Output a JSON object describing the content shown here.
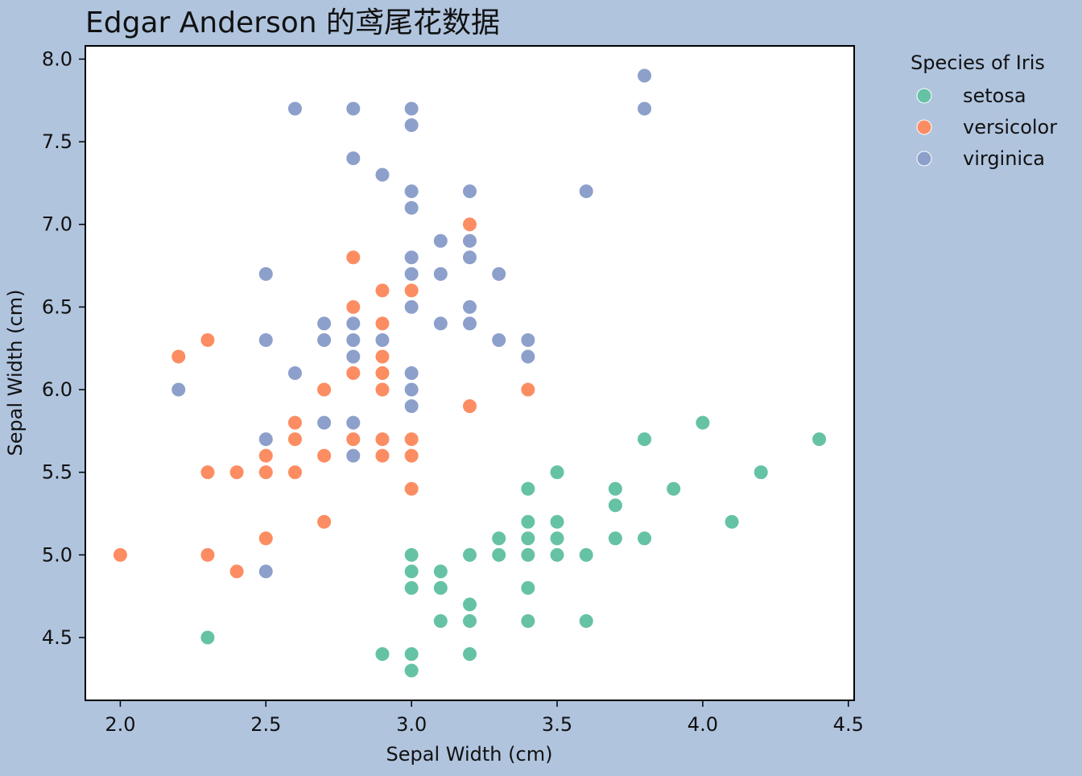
{
  "chart_data": {
    "type": "scatter",
    "title": "Edgar Anderson 的鸢尾花数据",
    "xlabel": "Sepal Width (cm)",
    "ylabel": "Sepal Width (cm)",
    "xlim": [
      1.88,
      4.52
    ],
    "ylim": [
      4.12,
      8.08
    ],
    "xticks": [
      "2.0",
      "2.5",
      "3.0",
      "3.5",
      "4.0",
      "4.5"
    ],
    "yticks": [
      "4.5",
      "5.0",
      "5.5",
      "6.0",
      "6.5",
      "7.0",
      "7.5",
      "8.0"
    ],
    "grid": false,
    "legend_title": "Species of Iris",
    "legend_position": "outside-right-top",
    "series": [
      {
        "name": "setosa",
        "color": "#66c2a5",
        "points": [
          [
            2.3,
            4.5
          ],
          [
            2.9,
            4.4
          ],
          [
            3.0,
            4.4
          ],
          [
            3.0,
            4.3
          ],
          [
            3.2,
            4.4
          ],
          [
            3.0,
            5.0
          ],
          [
            3.0,
            4.9
          ],
          [
            3.0,
            4.8
          ],
          [
            3.1,
            4.9
          ],
          [
            3.1,
            4.8
          ],
          [
            3.1,
            4.6
          ],
          [
            3.2,
            5.0
          ],
          [
            3.2,
            4.7
          ],
          [
            3.2,
            4.6
          ],
          [
            3.3,
            5.1
          ],
          [
            3.3,
            5.0
          ],
          [
            3.4,
            5.4
          ],
          [
            3.4,
            5.2
          ],
          [
            3.4,
            5.1
          ],
          [
            3.4,
            5.0
          ],
          [
            3.4,
            4.8
          ],
          [
            3.4,
            4.6
          ],
          [
            3.5,
            5.5
          ],
          [
            3.5,
            5.2
          ],
          [
            3.5,
            5.1
          ],
          [
            3.5,
            5.0
          ],
          [
            3.6,
            5.0
          ],
          [
            3.6,
            4.6
          ],
          [
            3.7,
            5.4
          ],
          [
            3.7,
            5.3
          ],
          [
            3.7,
            5.1
          ],
          [
            3.8,
            5.7
          ],
          [
            3.8,
            5.1
          ],
          [
            3.9,
            5.4
          ],
          [
            4.0,
            5.8
          ],
          [
            4.1,
            5.2
          ],
          [
            4.2,
            5.5
          ],
          [
            4.4,
            5.7
          ]
        ]
      },
      {
        "name": "versicolor",
        "color": "#fc8d62",
        "points": [
          [
            2.0,
            5.0
          ],
          [
            2.2,
            6.2
          ],
          [
            2.3,
            6.3
          ],
          [
            2.3,
            5.5
          ],
          [
            2.3,
            5.0
          ],
          [
            2.4,
            5.5
          ],
          [
            2.4,
            4.9
          ],
          [
            2.5,
            5.6
          ],
          [
            2.5,
            5.5
          ],
          [
            2.5,
            5.1
          ],
          [
            2.6,
            5.8
          ],
          [
            2.6,
            5.7
          ],
          [
            2.6,
            5.5
          ],
          [
            2.7,
            6.0
          ],
          [
            2.7,
            5.8
          ],
          [
            2.7,
            5.6
          ],
          [
            2.7,
            5.2
          ],
          [
            2.8,
            6.8
          ],
          [
            2.8,
            6.5
          ],
          [
            2.8,
            6.1
          ],
          [
            2.8,
            5.7
          ],
          [
            2.9,
            6.6
          ],
          [
            2.9,
            6.4
          ],
          [
            2.9,
            6.2
          ],
          [
            2.9,
            6.1
          ],
          [
            2.9,
            6.0
          ],
          [
            2.9,
            5.7
          ],
          [
            2.9,
            5.6
          ],
          [
            3.0,
            6.6
          ],
          [
            3.0,
            5.7
          ],
          [
            3.0,
            5.6
          ],
          [
            3.0,
            5.4
          ],
          [
            3.2,
            7.0
          ],
          [
            3.2,
            5.9
          ],
          [
            3.4,
            6.0
          ]
        ]
      },
      {
        "name": "virginica",
        "color": "#8da0cb",
        "points": [
          [
            2.2,
            6.0
          ],
          [
            2.5,
            6.7
          ],
          [
            2.5,
            6.3
          ],
          [
            2.5,
            5.7
          ],
          [
            2.5,
            4.9
          ],
          [
            2.6,
            7.7
          ],
          [
            2.6,
            6.1
          ],
          [
            2.7,
            6.4
          ],
          [
            2.7,
            6.3
          ],
          [
            2.7,
            5.8
          ],
          [
            2.8,
            7.7
          ],
          [
            2.8,
            7.4
          ],
          [
            2.8,
            6.4
          ],
          [
            2.8,
            6.3
          ],
          [
            2.8,
            6.2
          ],
          [
            2.8,
            5.8
          ],
          [
            2.8,
            5.6
          ],
          [
            2.9,
            7.3
          ],
          [
            2.9,
            6.3
          ],
          [
            3.0,
            7.7
          ],
          [
            3.0,
            7.6
          ],
          [
            3.0,
            7.2
          ],
          [
            3.0,
            7.1
          ],
          [
            3.0,
            6.8
          ],
          [
            3.0,
            6.7
          ],
          [
            3.0,
            6.5
          ],
          [
            3.0,
            6.1
          ],
          [
            3.0,
            6.0
          ],
          [
            3.0,
            5.9
          ],
          [
            3.1,
            6.9
          ],
          [
            3.1,
            6.7
          ],
          [
            3.1,
            6.4
          ],
          [
            3.2,
            7.2
          ],
          [
            3.2,
            6.9
          ],
          [
            3.2,
            6.8
          ],
          [
            3.2,
            6.5
          ],
          [
            3.2,
            6.4
          ],
          [
            3.3,
            6.7
          ],
          [
            3.3,
            6.3
          ],
          [
            3.4,
            6.3
          ],
          [
            3.4,
            6.2
          ],
          [
            3.6,
            7.2
          ],
          [
            3.8,
            7.9
          ],
          [
            3.8,
            7.7
          ]
        ]
      }
    ]
  }
}
